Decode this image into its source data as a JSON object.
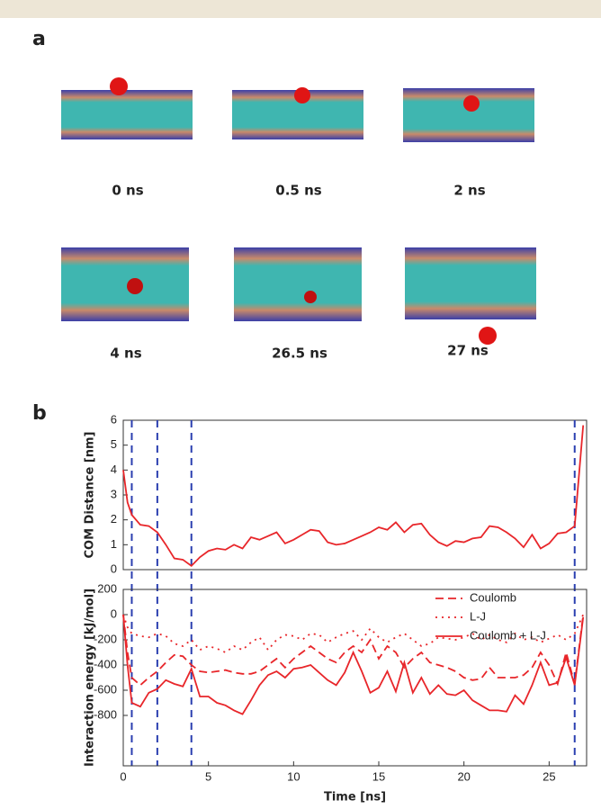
{
  "panel_labels": [
    "a",
    "b"
  ],
  "snapshots": [
    "0 ns",
    "0.5 ns",
    "2 ns",
    "4 ns",
    "26.5 ns",
    "27 ns"
  ],
  "chart_data": [
    {
      "type": "line",
      "ylabel": "COM Distance [nm]",
      "x": [
        0,
        0.25,
        0.5,
        1,
        1.5,
        2,
        2.5,
        3,
        3.5,
        4,
        4.5,
        5,
        5.5,
        6,
        6.5,
        7,
        7.5,
        8,
        8.5,
        9,
        9.5,
        10,
        10.5,
        11,
        11.5,
        12,
        12.5,
        13,
        13.5,
        14,
        14.5,
        15,
        15.5,
        16,
        16.5,
        17,
        17.5,
        18,
        18.5,
        19,
        19.5,
        20,
        20.5,
        21,
        21.5,
        22,
        22.5,
        23,
        23.5,
        24,
        24.5,
        25,
        25.5,
        26,
        26.5,
        27
      ],
      "series": [
        {
          "color": "#e8262a",
          "style": "solid",
          "values": [
            4,
            2.7,
            2.2,
            1.8,
            1.75,
            1.5,
            1.0,
            0.45,
            0.4,
            0.15,
            0.5,
            0.75,
            0.85,
            0.8,
            1.0,
            0.85,
            1.3,
            1.2,
            1.35,
            1.5,
            1.05,
            1.2,
            1.4,
            1.6,
            1.55,
            1.1,
            1.0,
            1.05,
            1.2,
            1.35,
            1.5,
            1.7,
            1.6,
            1.9,
            1.5,
            1.8,
            1.85,
            1.4,
            1.1,
            0.95,
            1.15,
            1.1,
            1.25,
            1.3,
            1.75,
            1.7,
            1.5,
            1.25,
            0.9,
            1.4,
            0.85,
            1.05,
            1.45,
            1.5,
            1.75,
            5.8
          ]
        }
      ],
      "xlim": [
        0,
        27.2
      ],
      "ylim": [
        0,
        6
      ],
      "yticks": [
        0,
        1,
        2,
        3,
        4,
        5,
        6
      ],
      "vlines": [
        0.5,
        2,
        4,
        26.5
      ],
      "vline_color": "#2b3fb0"
    },
    {
      "type": "line",
      "ylabel": "Interaction energy [kJ/mol]",
      "xlabel": "Time [ns]",
      "x": [
        0,
        0.25,
        0.5,
        1,
        1.5,
        2,
        2.5,
        3,
        3.5,
        4,
        4.5,
        5,
        5.5,
        6,
        6.5,
        7,
        7.5,
        8,
        8.5,
        9,
        9.5,
        10,
        10.5,
        11,
        11.5,
        12,
        12.5,
        13,
        13.5,
        14,
        14.5,
        15,
        15.5,
        16,
        16.5,
        17,
        17.5,
        18,
        18.5,
        19,
        19.5,
        20,
        20.5,
        21,
        21.5,
        22,
        22.5,
        23,
        23.5,
        24,
        24.5,
        25,
        25.5,
        26,
        26.5,
        27
      ],
      "series": [
        {
          "name": "Coulomb",
          "color": "#e8262a",
          "style": "dashed",
          "values": [
            0,
            -300,
            -500,
            -560,
            -500,
            -450,
            -380,
            -320,
            -330,
            -400,
            -450,
            -460,
            -450,
            -440,
            -460,
            -470,
            -470,
            -450,
            -400,
            -350,
            -420,
            -350,
            -300,
            -250,
            -300,
            -350,
            -380,
            -300,
            -250,
            -300,
            -200,
            -350,
            -250,
            -300,
            -420,
            -350,
            -300,
            -380,
            -400,
            -420,
            -450,
            -500,
            -520,
            -510,
            -420,
            -500,
            -500,
            -500,
            -480,
            -420,
            -300,
            -400,
            -550,
            -300,
            -550,
            0
          ]
        },
        {
          "name": "L-J",
          "color": "#e8262a",
          "style": "dotted",
          "values": [
            0,
            -100,
            -150,
            -170,
            -180,
            -150,
            -170,
            -230,
            -250,
            -200,
            -280,
            -250,
            -270,
            -300,
            -250,
            -280,
            -220,
            -180,
            -280,
            -200,
            -160,
            -170,
            -200,
            -150,
            -160,
            -220,
            -180,
            -150,
            -130,
            -200,
            -110,
            -180,
            -220,
            -180,
            -150,
            -200,
            -250,
            -230,
            -180,
            -190,
            -200,
            -180,
            -150,
            -200,
            -160,
            -200,
            -220,
            -150,
            -200,
            -180,
            -220,
            -190,
            -160,
            -200,
            -150,
            0
          ]
        },
        {
          "name": "Coulomb + L-J",
          "color": "#e8262a",
          "style": "solid",
          "values": [
            0,
            -400,
            -700,
            -730,
            -620,
            -590,
            -520,
            -550,
            -570,
            -430,
            -650,
            -650,
            -700,
            -720,
            -760,
            -790,
            -680,
            -560,
            -480,
            -450,
            -500,
            -430,
            -420,
            -400,
            -460,
            -520,
            -560,
            -460,
            -300,
            -450,
            -620,
            -580,
            -450,
            -610,
            -380,
            -620,
            -500,
            -630,
            -560,
            -630,
            -640,
            -600,
            -680,
            -720,
            -760,
            -760,
            -770,
            -640,
            -710,
            -560,
            -380,
            -560,
            -540,
            -340,
            -560,
            -20
          ]
        }
      ],
      "xlim": [
        0,
        27.2
      ],
      "ylim": [
        -1200,
        200
      ],
      "yticks": [
        200,
        0,
        -200,
        -400,
        -600,
        -800
      ],
      "xticks": [
        0,
        5,
        10,
        15,
        20,
        25
      ],
      "legend": "upper right"
    }
  ]
}
